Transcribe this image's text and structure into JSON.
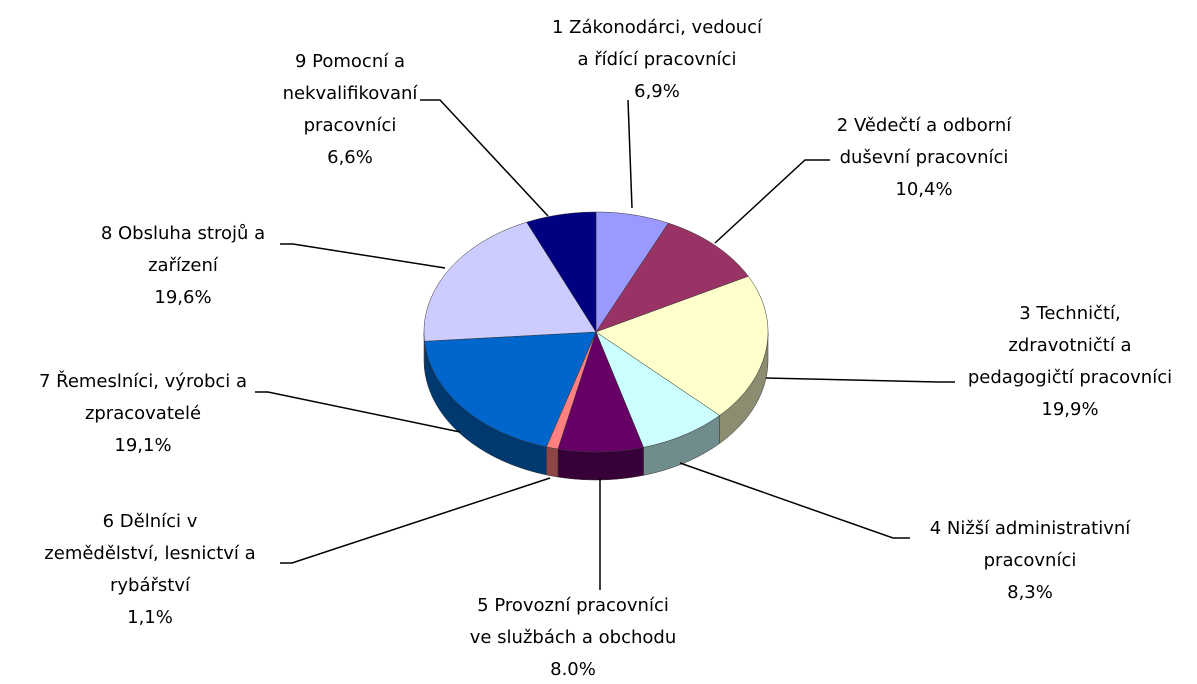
{
  "chart_data": {
    "type": "pie",
    "categories": [
      "1 Zákonodárci, vedoucí\na řídící pracovníci",
      "2 Vědečtí a odborní\nduševní pracovníci",
      "3 Techničtí,\nzdravotničtí a\npedagogičtí pracovníci",
      "4 Nižší administrativní\npracovníci",
      "5 Provozní pracovníci\nve službách a obchodu",
      "6 Dělníci v\nzemědělství, lesnictví a\nrybářství",
      "7 Řemeslníci, výrobci a\nzpracovatelé",
      "8 Obsluha strojů a\nzařízení",
      "9 Pomocní a\nnekvalifikovaní\npracovníci"
    ],
    "values": [
      6.9,
      10.4,
      19.9,
      8.3,
      8.0,
      1.1,
      19.1,
      19.6,
      6.6
    ],
    "value_labels": [
      "6,9%",
      "10,4%",
      "19,9%",
      "8,3%",
      "8.0%",
      "1,1%",
      "19,1%",
      "19,6%",
      "6,6%"
    ],
    "colors": [
      "#9999ff",
      "#993366",
      "#ffffcc",
      "#ccffff",
      "#660066",
      "#ff8080",
      "#0066cc",
      "#ccccff",
      "#000080"
    ]
  }
}
